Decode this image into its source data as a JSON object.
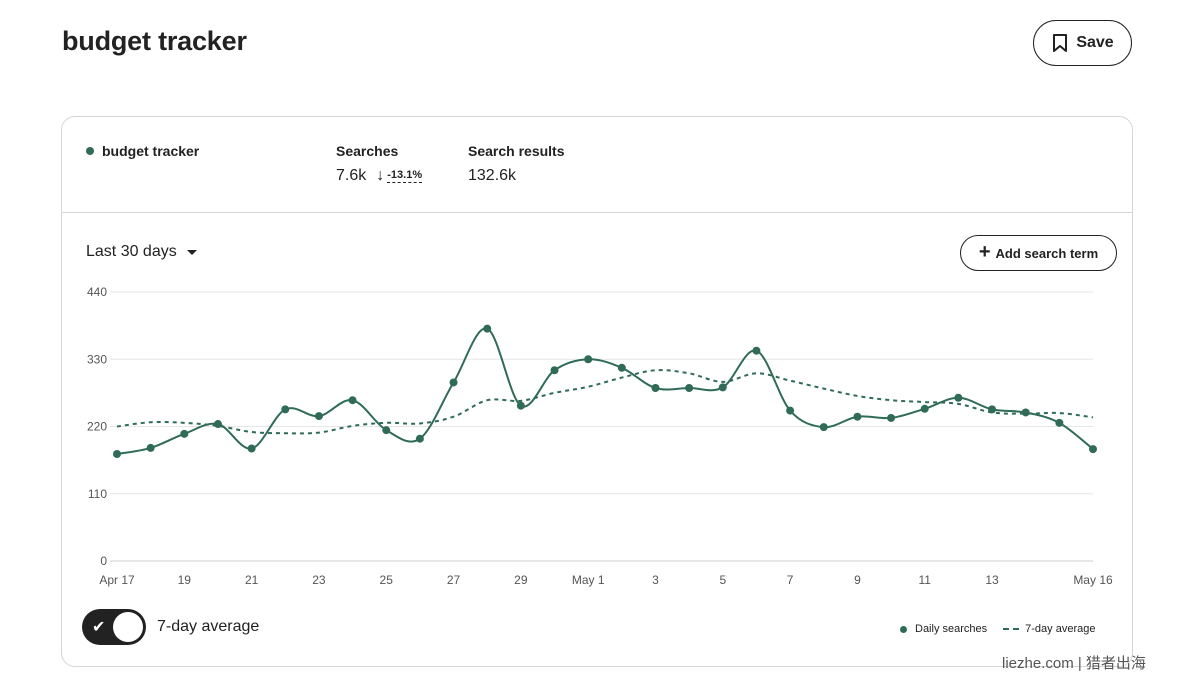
{
  "page": {
    "title": "budget tracker",
    "save_label": "Save"
  },
  "summary": {
    "term": "budget tracker",
    "searches_label": "Searches",
    "searches_value": "7.6k",
    "searches_change": "-13.1%",
    "results_label": "Search results",
    "results_value": "132.6k"
  },
  "controls": {
    "range_label": "Last 30 days",
    "add_term_label": "Add search term",
    "toggle_label": "7-day average",
    "toggle_on": true
  },
  "legend": {
    "daily": "Daily searches",
    "average": "7-day average"
  },
  "colors": {
    "series": "#2f6b57",
    "grid": "#e6e6e6",
    "text": "#222222"
  },
  "watermark": "liezhe.com | 猎者出海",
  "chart_data": {
    "type": "line",
    "x": [
      "Apr 17",
      "Apr 18",
      "Apr 19",
      "Apr 20",
      "Apr 21",
      "Apr 22",
      "Apr 23",
      "Apr 24",
      "Apr 25",
      "Apr 26",
      "Apr 27",
      "Apr 28",
      "Apr 29",
      "Apr 30",
      "May 1",
      "May 2",
      "May 3",
      "May 4",
      "May 5",
      "May 6",
      "May 7",
      "May 8",
      "May 9",
      "May 10",
      "May 11",
      "May 12",
      "May 13",
      "May 14",
      "May 15",
      "May 16"
    ],
    "xtick_labels": [
      "Apr 17",
      "19",
      "21",
      "23",
      "25",
      "27",
      "29",
      "May 1",
      "3",
      "5",
      "7",
      "9",
      "11",
      "13",
      "May 16"
    ],
    "ylim": [
      0,
      440
    ],
    "yticks": [
      0,
      110,
      220,
      330,
      440
    ],
    "grid": true,
    "legend_position": "bottom-right",
    "series": [
      {
        "name": "Daily searches",
        "style": "solid-markers",
        "values": [
          175,
          185,
          208,
          224,
          184,
          248,
          237,
          263,
          214,
          200,
          292,
          380,
          254,
          312,
          330,
          316,
          283,
          283,
          284,
          344,
          246,
          219,
          236,
          234,
          249,
          267,
          248,
          243,
          226,
          183
        ]
      },
      {
        "name": "7-day average",
        "style": "dashed",
        "values": [
          220,
          227,
          226,
          221,
          211,
          209,
          210,
          221,
          226,
          225,
          236,
          263,
          262,
          275,
          285,
          300,
          312,
          307,
          293,
          307,
          295,
          282,
          270,
          263,
          260,
          257,
          243,
          241,
          242,
          235
        ]
      }
    ]
  }
}
